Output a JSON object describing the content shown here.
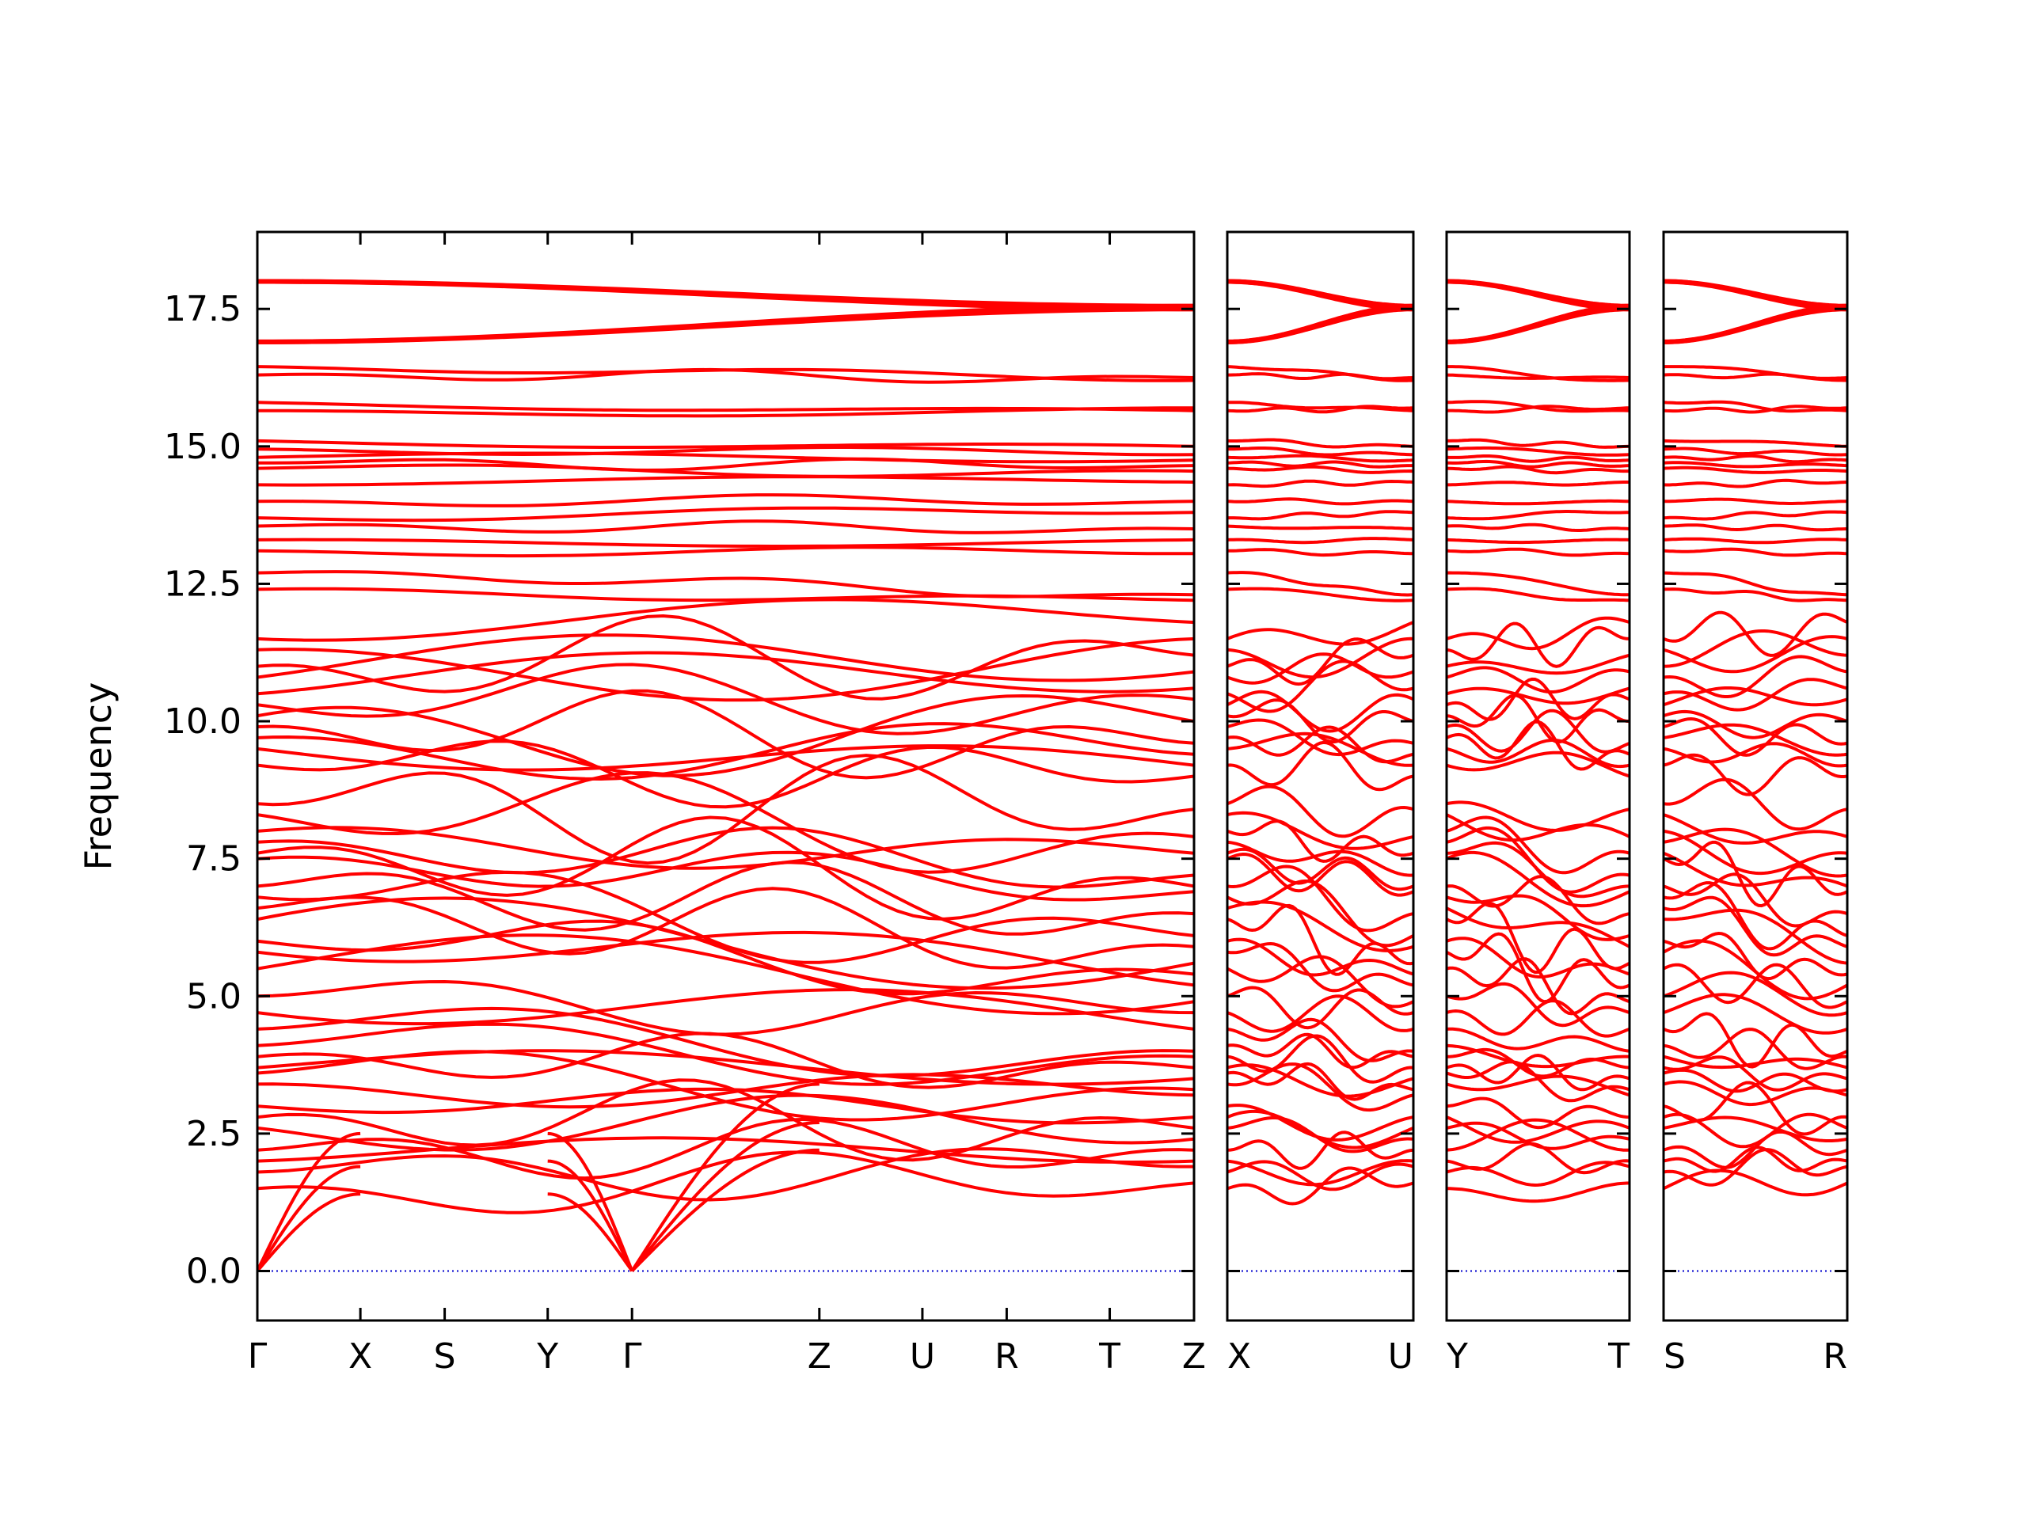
{
  "chart_data": {
    "type": "line",
    "ylabel": "Frequency",
    "ylim": [
      -0.9,
      18.9
    ],
    "yticks": [
      "0.0",
      "2.5",
      "5.0",
      "7.5",
      "10.0",
      "12.5",
      "15.0",
      "17.5"
    ],
    "ytick_values": [
      0,
      2.5,
      5,
      7.5,
      10,
      12.5,
      15,
      17.5
    ],
    "grid": false,
    "line_color": "#ff0000",
    "zero_line_color": "#0000cc",
    "panels": [
      {
        "name": "Γ-X-S-Y-Γ-Z-U-R-T-Z",
        "xticks": [
          {
            "label": "Γ",
            "x": 0.0
          },
          {
            "label": "X",
            "x": 0.11
          },
          {
            "label": "S",
            "x": 0.2
          },
          {
            "label": "Y",
            "x": 0.31
          },
          {
            "label": "Γ",
            "x": 0.4
          },
          {
            "label": "Z",
            "x": 0.6
          },
          {
            "label": "U",
            "x": 0.71
          },
          {
            "label": "R",
            "x": 0.8
          },
          {
            "label": "T",
            "x": 0.91
          },
          {
            "label": "Z",
            "x": 1.0
          }
        ]
      },
      {
        "name": "X-U",
        "xticks": [
          {
            "label": "X",
            "x": 0.0
          },
          {
            "label": "U",
            "x": 1.0
          }
        ]
      },
      {
        "name": "Y-T",
        "xticks": [
          {
            "label": "Y",
            "x": 0.0
          },
          {
            "label": "T",
            "x": 1.0
          }
        ]
      },
      {
        "name": "S-R",
        "xticks": [
          {
            "label": "S",
            "x": 0.0
          },
          {
            "label": "R",
            "x": 1.0
          }
        ]
      }
    ],
    "high_branches_start": [
      18.0,
      18.0,
      16.9,
      16.9,
      16.45,
      16.3,
      15.8,
      15.65,
      15.1,
      14.95,
      14.8,
      14.7,
      14.6,
      14.3,
      14.0,
      13.7,
      13.55,
      13.3,
      13.1,
      12.7,
      12.4
    ],
    "high_branches_end": [
      17.55,
      17.5,
      17.55,
      17.5,
      16.2,
      16.25,
      15.65,
      15.7,
      15.0,
      14.85,
      14.75,
      14.65,
      14.55,
      14.35,
      14.0,
      13.8,
      13.5,
      13.3,
      13.05,
      12.3,
      12.2
    ],
    "mid_branches_start": [
      11.5,
      11.3,
      11.0,
      10.8,
      10.5,
      10.3,
      10.1,
      9.9,
      9.7,
      9.5,
      9.2,
      8.5,
      8.3,
      8.0,
      7.8,
      7.6,
      7.5,
      7.0,
      6.8,
      6.6,
      6.4,
      6.0,
      5.8,
      5.5,
      5.0
    ],
    "mid_branches_end": [
      11.8,
      11.5,
      11.2,
      10.9,
      10.6,
      10.4,
      10.0,
      9.6,
      9.4,
      9.2,
      9.0,
      8.4,
      7.9,
      7.6,
      7.2,
      7.0,
      6.9,
      6.5,
      6.1,
      5.9,
      5.6,
      5.4,
      5.2,
      4.9,
      4.7
    ],
    "low_branches_start": [
      4.7,
      4.4,
      4.1,
      3.9,
      3.7,
      3.6,
      3.4,
      3.0,
      2.8,
      2.6,
      2.2,
      2.0,
      1.8,
      1.5
    ],
    "low_branches_end": [
      4.4,
      4.0,
      3.9,
      3.7,
      3.5,
      3.3,
      3.2,
      2.8,
      2.6,
      2.4,
      2.2,
      2.0,
      1.9,
      1.6
    ]
  }
}
